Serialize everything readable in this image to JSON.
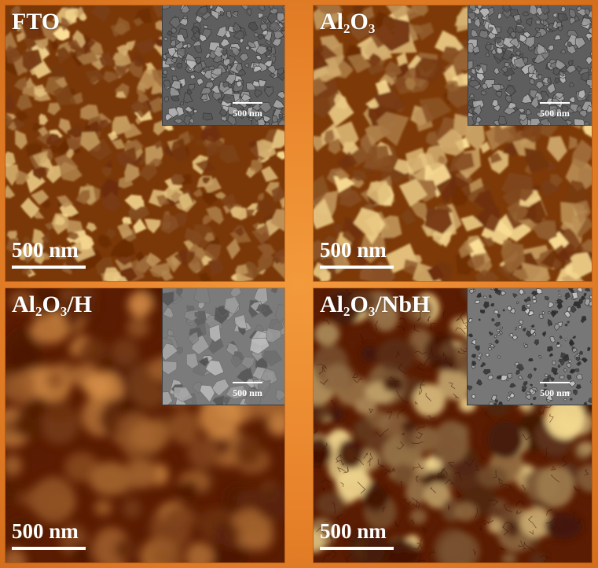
{
  "panels": [
    {
      "id": "fto",
      "label_main": "FTO",
      "label_sub": "",
      "label_tail": "",
      "main_scale": "500 nm",
      "inset_scale": "500 nm"
    },
    {
      "id": "al2o3",
      "label_main": "Al",
      "label_sub": "2",
      "label_tail": "O",
      "label_sub2": "3",
      "label_end": "",
      "main_scale": "500 nm",
      "inset_scale": "500 nm"
    },
    {
      "id": "al2o3-h",
      "label_main": "Al",
      "label_sub": "2",
      "label_tail": "O",
      "label_sub2": "3",
      "label_end": "/H",
      "main_scale": "500 nm",
      "inset_scale": "500 nm"
    },
    {
      "id": "al2o3-nbh",
      "label_main": "Al",
      "label_sub": "2",
      "label_tail": "O",
      "label_sub2": "3",
      "label_end": "/NbH",
      "main_scale": "500 nm",
      "inset_scale": "500 nm"
    }
  ],
  "colors": {
    "background": "#e7822a",
    "afm_dark": "#4a1600",
    "afm_mid": "#a85a10",
    "afm_bright": "#f5d37a",
    "sem_gray": "#6b6b6b",
    "text": "#ffffff"
  }
}
